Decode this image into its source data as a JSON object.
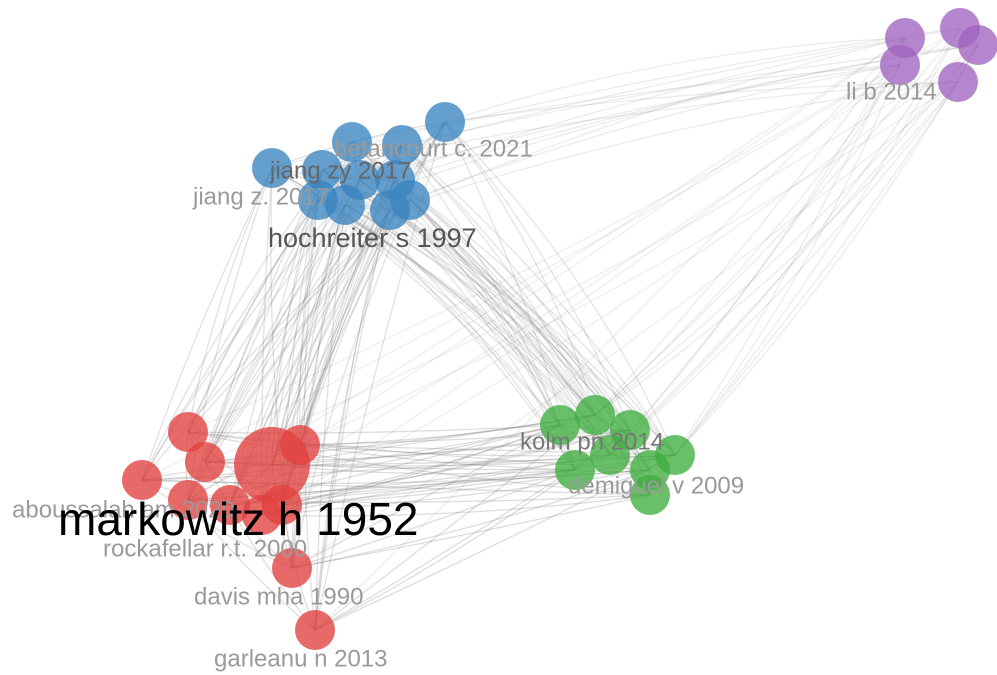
{
  "nodes": [
    {
      "label": "betancourt c. 2021"
    },
    {
      "label": "jiang zy 2017"
    },
    {
      "label": "jiang z. 2017"
    },
    {
      "label": "hochreiter s 1997"
    },
    {
      "label": "li b 2014"
    },
    {
      "label": "kolm pn 2014"
    },
    {
      "label": "demiguel v 2009"
    },
    {
      "label": "aboussalah am 2020"
    },
    {
      "label": "markowitz h 1952"
    },
    {
      "label": "rockafellar r.t. 2000"
    },
    {
      "label": "davis mha 1990"
    },
    {
      "label": "garleanu n 2013"
    }
  ]
}
